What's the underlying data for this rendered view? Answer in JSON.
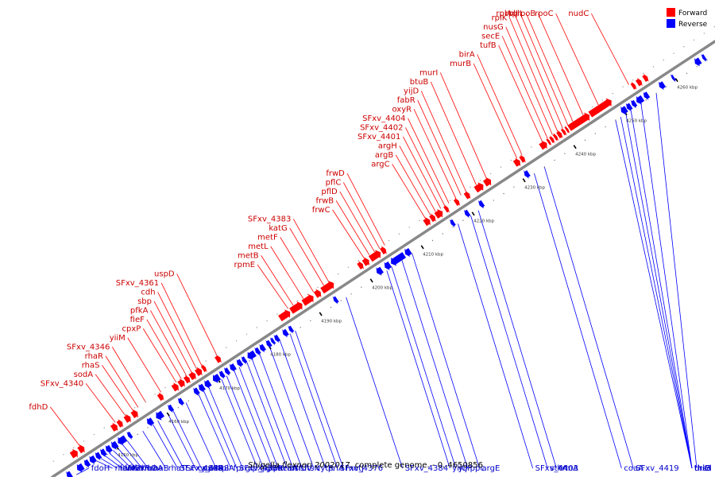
{
  "colors": {
    "forward": "#ff0000",
    "reverse": "#0000ff",
    "forward_label": "#cc0000",
    "reverse_label": "#0000cc",
    "backbone": "#888888"
  },
  "legend": {
    "forward": "Forward",
    "reverse": "Reverse"
  },
  "caption": {
    "organism": "Shigella flexneri 2002017",
    "rest": ", complete genome. - 0..4650856"
  },
  "ticks": [
    {
      "kbp": 4150,
      "label": "4150 kbp"
    },
    {
      "kbp": 4160,
      "label": "4160 kbp"
    },
    {
      "kbp": 4170,
      "label": "4170 kbp"
    },
    {
      "kbp": 4180,
      "label": "4180 kbp"
    },
    {
      "kbp": 4190,
      "label": "4190 kbp"
    },
    {
      "kbp": 4200,
      "label": "4200 kbp"
    },
    {
      "kbp": 4210,
      "label": "4210 kbp"
    },
    {
      "kbp": 4220,
      "label": "4220 kbp"
    },
    {
      "kbp": 4230,
      "label": "4230 kbp"
    },
    {
      "kbp": 4240,
      "label": "4240 kbp"
    },
    {
      "kbp": 4250,
      "label": "4250 kbp"
    },
    {
      "kbp": 4260,
      "label": "4260 kbp"
    }
  ],
  "forward_labels": [
    {
      "name": "fdhD",
      "kbp": 4145.0
    },
    {
      "name": "SFxv_4340",
      "kbp": 4152.0
    },
    {
      "name": "sodA",
      "kbp": 4154.0
    },
    {
      "name": "rhaS",
      "kbp": 4155.5
    },
    {
      "name": "rhaR",
      "kbp": 4156.5
    },
    {
      "name": "SFxv_4346",
      "kbp": 4158.0
    },
    {
      "name": "yiiM",
      "kbp": 4161.0
    },
    {
      "name": "cpxP",
      "kbp": 4164.0
    },
    {
      "name": "fieF",
      "kbp": 4165.0
    },
    {
      "name": "pfkA",
      "kbp": 4166.0
    },
    {
      "name": "sbp",
      "kbp": 4167.0
    },
    {
      "name": "cdh",
      "kbp": 4168.0
    },
    {
      "name": "SFxv_4361",
      "kbp": 4169.0
    },
    {
      "name": "uspD",
      "kbp": 4172.0
    },
    {
      "name": "rpmE",
      "kbp": 4186.0
    },
    {
      "name": "metB",
      "kbp": 4187.0
    },
    {
      "name": "metL",
      "kbp": 4189.0
    },
    {
      "name": "metF",
      "kbp": 4191.0
    },
    {
      "name": "katG",
      "kbp": 4193.0
    },
    {
      "name": "SFxv_4383",
      "kbp": 4194.0
    },
    {
      "name": "frwC",
      "kbp": 4201.0
    },
    {
      "name": "frwB",
      "kbp": 4202.0
    },
    {
      "name": "pflD",
      "kbp": 4203.0
    },
    {
      "name": "pflC",
      "kbp": 4204.0
    },
    {
      "name": "frwD",
      "kbp": 4205.0
    },
    {
      "name": "argC",
      "kbp": 4213.0
    },
    {
      "name": "argB",
      "kbp": 4214.0
    },
    {
      "name": "argH",
      "kbp": 4215.0
    },
    {
      "name": "SFxv_4401",
      "kbp": 4216.0
    },
    {
      "name": "SFxv_4402",
      "kbp": 4216.8
    },
    {
      "name": "SFxv_4404",
      "kbp": 4217.6
    },
    {
      "name": "oxyR",
      "kbp": 4219.0
    },
    {
      "name": "fabR",
      "kbp": 4220.0
    },
    {
      "name": "yijD",
      "kbp": 4221.0
    },
    {
      "name": "btuB",
      "kbp": 4223.0
    },
    {
      "name": "murI",
      "kbp": 4225.0
    },
    {
      "name": "murB",
      "kbp": 4231.0
    },
    {
      "name": "birA",
      "kbp": 4232.0
    },
    {
      "name": "tufB",
      "kbp": 4236.0
    },
    {
      "name": "secE",
      "kbp": 4237.0
    },
    {
      "name": "nusG",
      "kbp": 4238.0
    },
    {
      "name": "rplK",
      "kbp": 4239.0
    },
    {
      "name": "rplA",
      "kbp": 4240.0
    },
    {
      "name": "rplJ",
      "kbp": 4241.0
    },
    {
      "name": "rplL",
      "kbp": 4242.0
    },
    {
      "name": "rpoB",
      "kbp": 4244.0
    },
    {
      "name": "rpoC",
      "kbp": 4247.0
    },
    {
      "name": "nudC",
      "kbp": 4253.0
    }
  ],
  "reverse_labels": [
    {
      "name": "fdoH",
      "kbp": 4142.0
    },
    {
      "name": "rhaM",
      "kbp": 4146.0
    },
    {
      "name": "frvA",
      "kbp": 4146.8
    },
    {
      "name": "frvB",
      "kbp": 4147.6
    },
    {
      "name": "frvX",
      "kbp": 4148.4
    },
    {
      "name": "frvR",
      "kbp": 4149.2
    },
    {
      "name": "rhaD",
      "kbp": 4150.0
    },
    {
      "name": "rhaA",
      "kbp": 4151.0
    },
    {
      "name": "rhaB",
      "kbp": 4152.0
    },
    {
      "name": "rhaT",
      "kbp": 4155.0
    },
    {
      "name": "SFxv_4349",
      "kbp": 4157.0
    },
    {
      "name": "SFxv_4348",
      "kbp": 4158.0
    },
    {
      "name": "cpxA",
      "kbp": 4160.0
    },
    {
      "name": "cpxR",
      "kbp": 4161.0
    },
    {
      "name": "tpiA",
      "kbp": 4163.5
    },
    {
      "name": "fpr",
      "kbp": 4166.0
    },
    {
      "name": "SFxv_4359",
      "kbp": 4167.0
    },
    {
      "name": "glpX",
      "kbp": 4168.0
    },
    {
      "name": "glpF",
      "kbp": 4170.5
    },
    {
      "name": "glpK",
      "kbp": 4171.5
    },
    {
      "name": "menA",
      "kbp": 4173.0
    },
    {
      "name": "rraA",
      "kbp": 4174.0
    },
    {
      "name": "hslU",
      "kbp": 4175.5
    },
    {
      "name": "hslV",
      "kbp": 4176.5
    },
    {
      "name": "ftsN",
      "kbp": 4178.0
    },
    {
      "name": "cytR",
      "kbp": 4180.0
    },
    {
      "name": "priA",
      "kbp": 4182.0
    },
    {
      "name": "SFxv_4376",
      "kbp": 4184.0
    },
    {
      "name": "metJ",
      "kbp": 4185.0
    },
    {
      "name": "SFxv_4384",
      "kbp": 4195.0
    },
    {
      "name": "yijO",
      "kbp": 4203.0
    },
    {
      "name": "yijP",
      "kbp": 4204.0
    },
    {
      "name": "ppc",
      "kbp": 4206.0
    },
    {
      "name": "argE",
      "kbp": 4208.0
    },
    {
      "name": "SFxv_4403",
      "kbp": 4217.0
    },
    {
      "name": "sthA",
      "kbp": 4219.5
    },
    {
      "name": "trmA",
      "kbp": 4221.0
    },
    {
      "name": "coaA",
      "kbp": 4232.0
    },
    {
      "name": "SFxv_4419",
      "kbp": 4234.0
    },
    {
      "name": "thiH",
      "kbp": 4248.0
    },
    {
      "name": "thiG",
      "kbp": 4249.0
    },
    {
      "name": "thiF",
      "kbp": 4250.0
    },
    {
      "name": "thiE",
      "kbp": 4251.0
    },
    {
      "name": "thiC",
      "kbp": 4253.0
    },
    {
      "name": "rsd",
      "kbp": 4256.0
    }
  ],
  "forward_genes": [
    [
      4143.0,
      4144.2
    ],
    [
      4144.5,
      4145.5
    ],
    [
      4151.0,
      4152.0
    ],
    [
      4152.2,
      4153.0
    ],
    [
      4153.6,
      4154.6
    ],
    [
      4155.0,
      4156.0
    ],
    [
      4160.2,
      4161.0
    ],
    [
      4163.0,
      4164.0
    ],
    [
      4164.2,
      4165.2
    ],
    [
      4165.4,
      4166.2
    ],
    [
      4166.4,
      4167.4
    ],
    [
      4167.6,
      4168.6
    ],
    [
      4168.8,
      4169.4
    ],
    [
      4171.5,
      4172.3
    ],
    [
      4184.0,
      4186.0
    ],
    [
      4186.2,
      4188.4
    ],
    [
      4188.6,
      4190.6
    ],
    [
      4191.0,
      4192.0
    ],
    [
      4192.3,
      4194.6
    ],
    [
      4199.5,
      4200.3
    ],
    [
      4200.5,
      4201.5
    ],
    [
      4201.8,
      4203.8
    ],
    [
      4204.0,
      4204.8
    ],
    [
      4212.5,
      4213.5
    ],
    [
      4213.7,
      4214.5
    ],
    [
      4214.7,
      4216.0
    ],
    [
      4216.5,
      4217.1
    ],
    [
      4218.5,
      4219.2
    ],
    [
      4220.5,
      4221.3
    ],
    [
      4222.5,
      4224.0
    ],
    [
      4224.3,
      4225.5
    ],
    [
      4230.2,
      4231.2
    ],
    [
      4231.4,
      4232.1
    ],
    [
      4235.3,
      4236.5
    ],
    [
      4236.7,
      4237.1
    ],
    [
      4237.3,
      4237.8
    ],
    [
      4238.0,
      4238.5
    ],
    [
      4238.7,
      4239.4
    ],
    [
      4239.6,
      4240.1
    ],
    [
      4240.3,
      4240.7
    ],
    [
      4240.9,
      4244.9
    ],
    [
      4245.0,
      4249.2
    ],
    [
      4253.3,
      4253.9
    ],
    [
      4254.3,
      4255.1
    ],
    [
      4255.6,
      4256.3
    ]
  ],
  "reverse_genes": [
    [
      4140.5,
      4141.3
    ],
    [
      4142.5,
      4143.6
    ],
    [
      4144.0,
      4144.8
    ],
    [
      4145.0,
      4146.0
    ],
    [
      4146.2,
      4147.0
    ],
    [
      4147.2,
      4148.0
    ],
    [
      4148.2,
      4149.1
    ],
    [
      4149.3,
      4150.3
    ],
    [
      4150.5,
      4152.0
    ],
    [
      4152.5,
      4153.1
    ],
    [
      4156.3,
      4157.3
    ],
    [
      4158.0,
      4159.3
    ],
    [
      4160.5,
      4161.2
    ],
    [
      4162.5,
      4163.2
    ],
    [
      4165.5,
      4166.3
    ],
    [
      4166.5,
      4167.4
    ],
    [
      4167.6,
      4168.6
    ],
    [
      4169.2,
      4170.4
    ],
    [
      4170.6,
      4171.3
    ],
    [
      4171.6,
      4172.3
    ],
    [
      4172.6,
      4173.5
    ],
    [
      4174.0,
      4174.8
    ],
    [
      4175.0,
      4175.6
    ],
    [
      4176.0,
      4177.4
    ],
    [
      4177.6,
      4178.3
    ],
    [
      4178.5,
      4179.3
    ],
    [
      4179.8,
      4180.5
    ],
    [
      4180.7,
      4181.2
    ],
    [
      4181.4,
      4182.1
    ],
    [
      4183.0,
      4183.8
    ],
    [
      4184.2,
      4184.8
    ],
    [
      4193.0,
      4193.6
    ],
    [
      4201.4,
      4202.4
    ],
    [
      4203.0,
      4204.0
    ],
    [
      4204.2,
      4206.8
    ],
    [
      4207.0,
      4208.0
    ],
    [
      4216.0,
      4216.6
    ],
    [
      4218.8,
      4219.5
    ],
    [
      4221.6,
      4222.3
    ],
    [
      4230.5,
      4231.3
    ],
    [
      4249.5,
      4250.5
    ],
    [
      4250.6,
      4251.4
    ],
    [
      4251.6,
      4252.3
    ],
    [
      4252.5,
      4253.7
    ],
    [
      4254.0,
      4254.8
    ],
    [
      4257.0,
      4257.9
    ],
    [
      4259.5,
      4259.9
    ],
    [
      4264.0,
      4265.0
    ],
    [
      4265.5,
      4266.0
    ]
  ]
}
